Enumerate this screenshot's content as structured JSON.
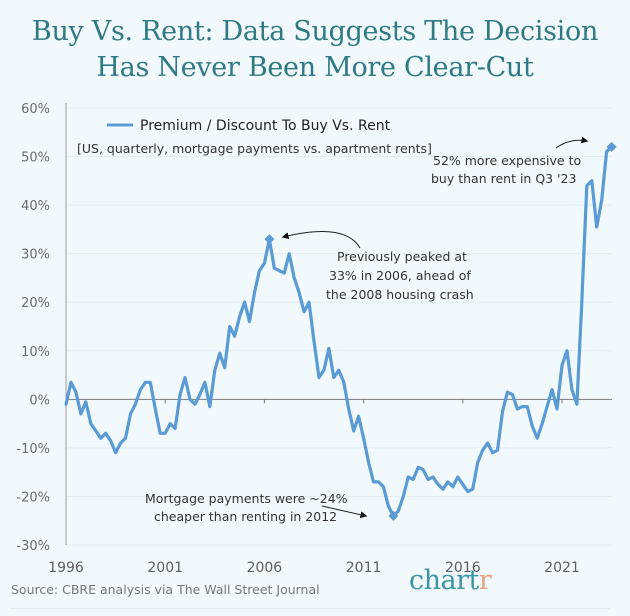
{
  "title": {
    "line1": "Buy Vs. Rent: Data Suggests The Decision",
    "line2": "Has Never Been More Clear-Cut"
  },
  "footer": {
    "source": "Source: CBRE analysis via The Wall Street Journal",
    "brand_main": "chart",
    "brand_accent": "r"
  },
  "colors": {
    "line": "#5b9bd5",
    "title": "#2f7a85",
    "brand": "#3a95a5",
    "brand_accent": "#e8a27e",
    "background": "#f1f9fc"
  },
  "chart_data": {
    "type": "line",
    "title": "Buy Vs. Rent: Data Suggests The Decision Has Never Been More Clear-Cut",
    "subtitle": "[US, quarterly, mortgage payments vs. apartment rents]",
    "xlabel": "",
    "ylabel": "",
    "ylim": [
      -30,
      60
    ],
    "yticks": [
      60,
      50,
      40,
      30,
      20,
      10,
      0,
      -10,
      -20,
      -30
    ],
    "ytick_labels": [
      "60%",
      "50%",
      "40%",
      "30%",
      "20%",
      "10%",
      "0%",
      "-10%",
      "-20%",
      "-30%"
    ],
    "xlim": [
      1996,
      2024
    ],
    "xticks": [
      1996,
      2001,
      2006,
      2011,
      2016,
      2021
    ],
    "xtick_labels": [
      "1996",
      "2001",
      "2006",
      "2011",
      "2016",
      "2021"
    ],
    "grid": true,
    "legend": {
      "position": "top-left",
      "entries": [
        "Premium / Discount To Buy Vs. Rent"
      ]
    },
    "series": [
      {
        "name": "Premium / Discount To Buy Vs. Rent",
        "start": 1996,
        "frequency": "quarterly",
        "values": [
          -1,
          3.5,
          1.5,
          -3,
          -0.5,
          -5,
          -6.5,
          -8,
          -7,
          -8.5,
          -11,
          -9,
          -8,
          -3,
          -1,
          2,
          3.5,
          3.5,
          -2,
          -7,
          -7,
          -5,
          -6,
          1,
          4.5,
          0,
          -1,
          1,
          3.5,
          -1.5,
          6,
          9.5,
          6.5,
          15,
          13,
          17,
          20,
          16,
          22,
          26.5,
          28,
          33,
          27,
          26.5,
          26,
          30,
          25,
          22,
          18,
          20,
          12,
          4.5,
          6,
          10.5,
          4.5,
          6,
          3.5,
          -2,
          -6.5,
          -3.5,
          -8,
          -13,
          -17,
          -17,
          -18,
          -22,
          -24,
          -23,
          -20,
          -16,
          -16.5,
          -14,
          -14.5,
          -16.5,
          -16,
          -17.5,
          -18.5,
          -17,
          -18,
          -16,
          -17.5,
          -19,
          -18.5,
          -13,
          -10.5,
          -9,
          -11,
          -10.5,
          -2.5,
          1.5,
          1,
          -2,
          -1.5,
          -1.5,
          -5.5,
          -8,
          -5,
          -1.5,
          2,
          -2,
          7,
          10,
          2,
          -1,
          20,
          44,
          45,
          35.5,
          41,
          51,
          52
        ]
      }
    ],
    "markers": [
      {
        "label": "peak-2006",
        "x": 2006.25,
        "y": 33
      },
      {
        "label": "trough-2012",
        "x": 2012.5,
        "y": -24
      },
      {
        "label": "latest-q3-2023",
        "x": 2023.5,
        "y": 52
      }
    ],
    "annotations": [
      {
        "id": "recent",
        "lines": [
          "52% more expensive to",
          "buy than rent in Q3 '23"
        ]
      },
      {
        "id": "peak",
        "lines": [
          "Previously peaked at",
          "33% in 2006, ahead of",
          "the 2008 housing crash"
        ]
      },
      {
        "id": "trough",
        "lines": [
          "Mortgage payments were ~24%",
          "cheaper than renting in 2012"
        ]
      }
    ]
  }
}
